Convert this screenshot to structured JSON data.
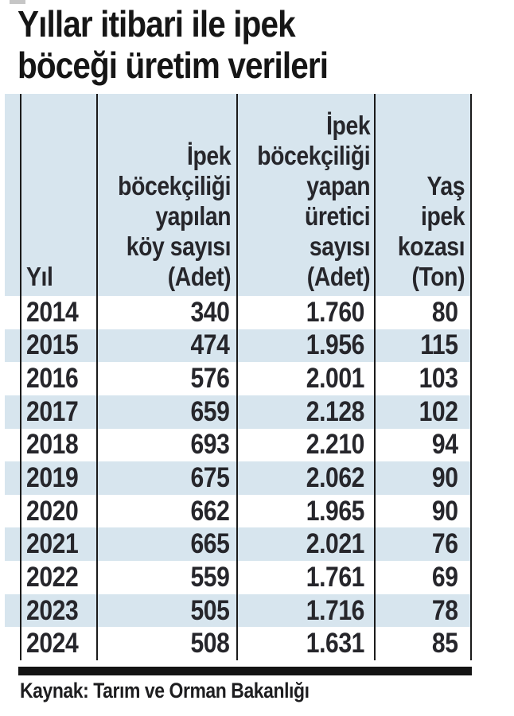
{
  "title": {
    "text": "Yıllar itibari ile ipek böceği üretim verileri",
    "lines": [
      "Yıllar itibari ile ipek",
      "böceği üretim verileri"
    ]
  },
  "table": {
    "columns": [
      {
        "key": "year",
        "label": "Yıl",
        "header_lines": [
          "Yıl"
        ]
      },
      {
        "key": "villages",
        "label": "İpek böcekçiliği yapılan köy sayısı (Adet)",
        "header_lines": [
          "İpek",
          "böcekçiliği",
          "yapılan",
          "köy sayısı",
          "(Adet)"
        ]
      },
      {
        "key": "producers",
        "label": "İpek böcekçiliği yapan üretici sayısı (Adet)",
        "header_lines": [
          "İpek",
          "böcekçiliği",
          "yapan",
          "üretici",
          "sayısı",
          "(Adet)"
        ]
      },
      {
        "key": "cocoon",
        "label": "Yaş ipek kozası (Ton)",
        "header_lines": [
          "Yaş",
          "ipek",
          "kozası",
          "(Ton)"
        ]
      }
    ],
    "rows": [
      {
        "cells": [
          "2014",
          "340",
          "1.760",
          "80"
        ]
      },
      {
        "cells": [
          "2015",
          "474",
          "1.956",
          "115"
        ]
      },
      {
        "cells": [
          "2016",
          "576",
          "2.001",
          "103"
        ]
      },
      {
        "cells": [
          "2017",
          "659",
          "2.128",
          "102"
        ]
      },
      {
        "cells": [
          "2018",
          "693",
          "2.210",
          "94"
        ]
      },
      {
        "cells": [
          "2019",
          "675",
          "2.062",
          "90"
        ]
      },
      {
        "cells": [
          "2020",
          "662",
          "1.965",
          "90"
        ]
      },
      {
        "cells": [
          "2021",
          "665",
          "2.021",
          "76"
        ]
      },
      {
        "cells": [
          "2022",
          "559",
          "1.761",
          "69"
        ]
      },
      {
        "cells": [
          "2023",
          "505",
          "1.716",
          "78"
        ]
      },
      {
        "cells": [
          "2024",
          "508",
          "1.631",
          "85"
        ]
      }
    ]
  },
  "source": {
    "label": "Kaynak: Tarım ve Orman Bakanlığı"
  },
  "colors": {
    "stripe_blue": "#d7e5ee",
    "row_white": "#ffffff",
    "grid_line": "#1b1b1b",
    "rule_black": "#141414",
    "text": "#26262b"
  },
  "chart_data": {
    "type": "table",
    "title": "Yıllar itibari ile ipek böceği üretim verileri",
    "categories": [
      "2014",
      "2015",
      "2016",
      "2017",
      "2018",
      "2019",
      "2020",
      "2021",
      "2022",
      "2023",
      "2024"
    ],
    "series": [
      {
        "name": "İpek böcekçiliği yapılan köy sayısı (Adet)",
        "values": [
          340,
          474,
          576,
          659,
          693,
          675,
          662,
          665,
          559,
          505,
          508
        ]
      },
      {
        "name": "İpek böcekçiliği yapan üretici sayısı (Adet)",
        "values": [
          1760,
          1956,
          2001,
          2128,
          2210,
          2062,
          1965,
          2021,
          1761,
          1716,
          1631
        ]
      },
      {
        "name": "Yaş ipek kozası (Ton)",
        "values": [
          80,
          115,
          103,
          102,
          94,
          90,
          90,
          76,
          69,
          78,
          85
        ]
      }
    ],
    "xlabel": "Yıl",
    "source": "Kaynak: Tarım ve Orman Bakanlığı",
    "layout": "striped data table, alternating white/light-blue rows, vertical column rules only"
  }
}
